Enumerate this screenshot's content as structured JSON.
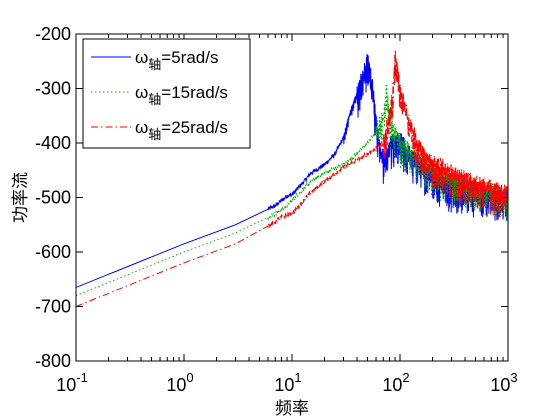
{
  "chart_data": {
    "type": "line",
    "title": "",
    "xlabel": "频率",
    "ylabel": "功率流",
    "xscale": "log",
    "xlim": [
      0.1,
      1000
    ],
    "ylim": [
      -800,
      -200
    ],
    "grid": false,
    "legend_position": "top-left",
    "xticks": [
      0.1,
      1,
      10,
      100,
      1000
    ],
    "xtick_labels": [
      {
        "base": "10",
        "exp": "-1"
      },
      {
        "base": "10",
        "exp": "0"
      },
      {
        "base": "10",
        "exp": "1"
      },
      {
        "base": "10",
        "exp": "2"
      },
      {
        "base": "10",
        "exp": "3"
      }
    ],
    "yticks": [
      -200,
      -300,
      -400,
      -500,
      -600,
      -700,
      -800
    ],
    "ytick_labels": [
      "-200",
      "-300",
      "-400",
      "-500",
      "-600",
      "-700",
      "-800"
    ],
    "series": [
      {
        "label": {
          "symbol": "ω",
          "sub": "轴",
          "text": "=5rad/s"
        },
        "color": "#0000ff",
        "style": "solid",
        "points": [
          [
            0.1,
            -665
          ],
          [
            1,
            -585
          ],
          [
            3,
            -550
          ],
          [
            7,
            -515
          ],
          [
            9,
            -497
          ],
          [
            10,
            -495
          ],
          [
            13,
            -470
          ],
          [
            15,
            -455
          ],
          [
            20,
            -440
          ],
          [
            25,
            -420
          ],
          [
            30,
            -390
          ],
          [
            35,
            -340
          ],
          [
            40,
            -310
          ],
          [
            45,
            -280
          ],
          [
            50,
            -250
          ],
          [
            55,
            -290
          ],
          [
            60,
            -360
          ],
          [
            65,
            -410
          ],
          [
            70,
            -430
          ],
          [
            80,
            -405
          ],
          [
            90,
            -395
          ],
          [
            100,
            -395
          ],
          [
            120,
            -420
          ],
          [
            150,
            -440
          ],
          [
            200,
            -460
          ],
          [
            300,
            -480
          ],
          [
            500,
            -490
          ],
          [
            700,
            -495
          ],
          [
            1000,
            -500
          ]
        ],
        "resonance_band": [
          30,
          1000
        ]
      },
      {
        "label": {
          "symbol": "ω",
          "sub": "轴",
          "text": "=15rad/s"
        },
        "color": "#00b000",
        "style": "dotted",
        "points": [
          [
            0.1,
            -680
          ],
          [
            1,
            -600
          ],
          [
            3,
            -565
          ],
          [
            7,
            -530
          ],
          [
            9,
            -515
          ],
          [
            10,
            -505
          ],
          [
            15,
            -470
          ],
          [
            20,
            -455
          ],
          [
            30,
            -440
          ],
          [
            40,
            -420
          ],
          [
            50,
            -400
          ],
          [
            60,
            -380
          ],
          [
            70,
            -355
          ],
          [
            75,
            -300
          ],
          [
            80,
            -360
          ],
          [
            100,
            -400
          ],
          [
            150,
            -430
          ],
          [
            200,
            -450
          ],
          [
            300,
            -470
          ],
          [
            500,
            -480
          ],
          [
            1000,
            -500
          ]
        ],
        "resonance_band": [
          60,
          1000
        ]
      },
      {
        "label": {
          "symbol": "ω",
          "sub": "轴",
          "text": "=25rad/s"
        },
        "color": "#ff0000",
        "style": "dashdot",
        "points": [
          [
            0.1,
            -700
          ],
          [
            1,
            -620
          ],
          [
            3,
            -585
          ],
          [
            7,
            -545
          ],
          [
            8,
            -535
          ],
          [
            10,
            -530
          ],
          [
            15,
            -490
          ],
          [
            20,
            -470
          ],
          [
            30,
            -445
          ],
          [
            50,
            -420
          ],
          [
            70,
            -400
          ],
          [
            85,
            -320
          ],
          [
            90,
            -240
          ],
          [
            100,
            -300
          ],
          [
            120,
            -360
          ],
          [
            150,
            -410
          ],
          [
            200,
            -435
          ],
          [
            300,
            -455
          ],
          [
            500,
            -475
          ],
          [
            1000,
            -495
          ]
        ],
        "resonance_band": [
          70,
          1000
        ]
      }
    ]
  }
}
